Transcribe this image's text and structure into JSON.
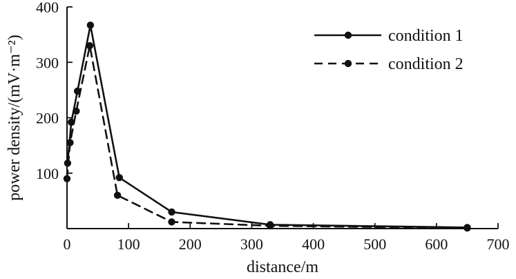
{
  "chart_data": {
    "type": "line",
    "title": "",
    "xlabel": "distance/m",
    "ylabel": "power density/(mV·m⁻²)",
    "xlim": [
      0,
      700
    ],
    "ylim": [
      0,
      400
    ],
    "x_ticks": [
      0,
      100,
      200,
      300,
      400,
      500,
      600,
      700
    ],
    "y_ticks": [
      100,
      200,
      300,
      400
    ],
    "grid": false,
    "legend_position": "top-right",
    "series": [
      {
        "name": "condition 1",
        "line_style": "solid",
        "color": "#111111",
        "x": [
          1,
          7,
          17,
          38,
          85,
          170,
          330,
          650
        ],
        "y": [
          118,
          192,
          248,
          367,
          92,
          30,
          7,
          2
        ]
      },
      {
        "name": "condition 2",
        "line_style": "dashed",
        "color": "#111111",
        "x": [
          0,
          5,
          15,
          37,
          82,
          170,
          330,
          650
        ],
        "y": [
          90,
          155,
          212,
          330,
          60,
          12,
          5,
          1
        ]
      }
    ]
  }
}
